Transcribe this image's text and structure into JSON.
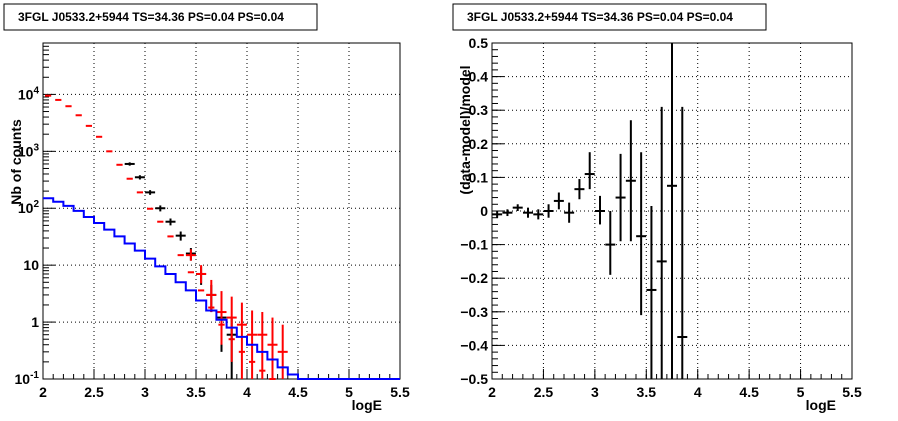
{
  "chart_data": [
    {
      "type": "line",
      "title": "3FGL J0533.2+5944 TS=34.36 PS=0.04 PS=0.04",
      "xlabel": "logE",
      "ylabel": "Nb of counts",
      "xlim": [
        2,
        5.5
      ],
      "ylim": [
        0.1,
        80000
      ],
      "yscale": "log",
      "grid": true,
      "xticks": [
        "2",
        "2.5",
        "3",
        "3.5",
        "4",
        "4.5",
        "5",
        "5.5"
      ],
      "yticks": [
        {
          "value": 0.1,
          "label": "10^-1"
        },
        {
          "value": 1,
          "label": "1"
        },
        {
          "value": 10,
          "label": "10"
        },
        {
          "value": 100,
          "label": "10^2"
        },
        {
          "value": 1000,
          "label": "10^3"
        },
        {
          "value": 10000,
          "label": "10^4"
        }
      ],
      "bin_edges": [
        2.0,
        2.1,
        2.2,
        2.3,
        2.4,
        2.5,
        2.6,
        2.7,
        2.8,
        2.9,
        3.0,
        3.1,
        3.2,
        3.3,
        3.4,
        3.5,
        3.6,
        3.7,
        3.8,
        3.9,
        4.0,
        4.1,
        4.2,
        4.3,
        4.4,
        4.5,
        4.6,
        4.7,
        4.8,
        4.9,
        5.0,
        5.1,
        5.2,
        5.3,
        5.4,
        5.5
      ],
      "series": [
        {
          "role": "model",
          "color": "#ff0000",
          "kind": "step",
          "values": [
            9500,
            8000,
            6200,
            4300,
            2800,
            1800,
            1000,
            580,
            330,
            190,
            98,
            58,
            32,
            15,
            7.5,
            3.6,
            1.8,
            0.9,
            0.5,
            0.3,
            0.2,
            0.14,
            0.1
          ]
        },
        {
          "role": "data",
          "color": "#000000",
          "kind": "points",
          "x": [
            2.85,
            2.95,
            3.05,
            3.15,
            3.25,
            3.35,
            3.45,
            3.55,
            3.65,
            3.75,
            3.85
          ],
          "y": [
            600,
            350,
            190,
            100,
            58,
            33,
            16,
            7,
            3,
            1.2,
            0.6
          ],
          "ylow": [
            560,
            320,
            172,
            88,
            50,
            27,
            12,
            4.5,
            1.5,
            0.3,
            0.1
          ],
          "yhigh": [
            640,
            380,
            208,
            112,
            66,
            39,
            20,
            9.5,
            4.5,
            2.1,
            1.2
          ]
        },
        {
          "role": "residual-band",
          "color": "#ff0000",
          "kind": "errorbars",
          "x": [
            3.45,
            3.55,
            3.65,
            3.75,
            3.85,
            3.95,
            4.05,
            4.15,
            4.25,
            4.35
          ],
          "y": [
            15,
            7,
            3,
            1.5,
            1.2,
            0.9,
            0.6,
            0.6,
            0.4,
            0.3
          ],
          "ylow": [
            12,
            4.8,
            1.5,
            0.4,
            0.2,
            0.1,
            0.1,
            0.1,
            0.1,
            0.1
          ],
          "yhigh": [
            19,
            10,
            5.5,
            3.5,
            2.8,
            2.2,
            1.6,
            1.5,
            1.2,
            0.9
          ]
        },
        {
          "role": "source",
          "color": "#0000ff",
          "kind": "step",
          "values": [
            150,
            130,
            110,
            90,
            70,
            55,
            42,
            32,
            24,
            18,
            13,
            9.5,
            7,
            5,
            3.6,
            2.4,
            1.6,
            1.1,
            0.8,
            0.55,
            0.4,
            0.3,
            0.22,
            0.16,
            0.12,
            0.1,
            0.1,
            0.1,
            0.1,
            0.1,
            0.1,
            0.1,
            0.1,
            0.1,
            0.1
          ]
        }
      ]
    },
    {
      "type": "scatter",
      "title": "3FGL J0533.2+5944 TS=34.36 PS=0.04 PS=0.04",
      "xlabel": "logE",
      "ylabel": "(data-model)/model",
      "xlim": [
        2,
        5.5
      ],
      "ylim": [
        -0.5,
        0.5
      ],
      "grid": true,
      "xticks": [
        "2",
        "2.5",
        "3",
        "3.5",
        "4",
        "4.5",
        "5",
        "5.5"
      ],
      "yticks": [
        "−0.5",
        "−0.4",
        "−0.3",
        "−0.2",
        "−0.1",
        "0",
        "0.1",
        "0.2",
        "0.3",
        "0.4",
        "0.5"
      ],
      "series": [
        {
          "color": "#000000",
          "x": [
            2.05,
            2.15,
            2.25,
            2.35,
            2.45,
            2.55,
            2.65,
            2.75,
            2.85,
            2.95,
            3.05,
            3.15,
            3.25,
            3.35,
            3.45,
            3.55,
            3.65,
            3.75,
            3.85
          ],
          "y": [
            -0.01,
            -0.005,
            0.01,
            -0.005,
            -0.01,
            0.0,
            0.03,
            -0.005,
            0.065,
            0.11,
            0.0,
            -0.1,
            0.04,
            0.09,
            -0.075,
            -0.235,
            -0.15,
            0.075,
            -0.375
          ],
          "ylow": [
            -0.02,
            -0.015,
            0.0,
            -0.02,
            -0.025,
            -0.02,
            0.005,
            -0.035,
            0.035,
            0.065,
            -0.04,
            -0.19,
            -0.09,
            -0.09,
            -0.31,
            -0.5,
            -0.5,
            -0.5,
            -0.5
          ],
          "yhigh": [
            0.0,
            0.005,
            0.02,
            0.01,
            0.005,
            0.02,
            0.055,
            0.025,
            0.095,
            0.175,
            0.045,
            0.0,
            0.17,
            0.27,
            0.175,
            0.015,
            0.31,
            0.5,
            0.31
          ]
        }
      ]
    }
  ]
}
